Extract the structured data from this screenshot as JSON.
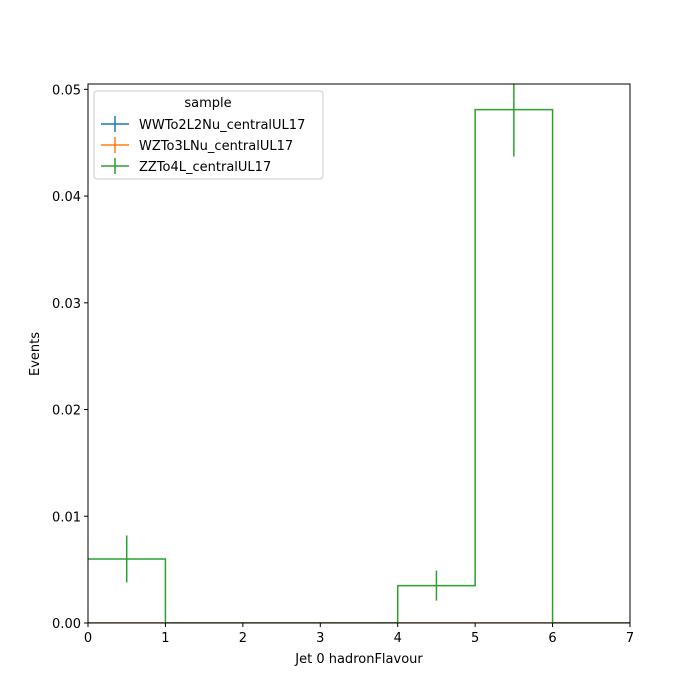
{
  "chart_data": {
    "type": "step-histogram",
    "xlabel": "Jet 0 hadronFlavour",
    "ylabel": "Events",
    "xlim": [
      0,
      7
    ],
    "ylim": [
      0,
      0.0505
    ],
    "x_ticks": [
      "0",
      "1",
      "2",
      "3",
      "4",
      "5",
      "6",
      "7"
    ],
    "y_ticks": [
      "0.00",
      "0.01",
      "0.02",
      "0.03",
      "0.04",
      "0.05"
    ],
    "bin_edges": [
      0,
      1,
      2,
      3,
      4,
      5,
      6,
      7
    ],
    "legend": {
      "title": "sample",
      "placement": "top-left"
    },
    "series": [
      {
        "name": "WWTo2L2Nu_centralUL17",
        "color": "#1f77b4",
        "values": [
          0,
          0,
          0,
          0,
          0,
          0,
          0
        ],
        "errors": [
          0,
          0,
          0,
          0,
          0,
          0,
          0
        ]
      },
      {
        "name": "WZTo3LNu_centralUL17",
        "color": "#ff7f0e",
        "values": [
          0,
          0,
          0,
          0,
          0,
          0,
          0
        ],
        "errors": [
          0,
          0,
          0,
          0,
          0,
          0,
          0
        ]
      },
      {
        "name": "ZZTo4L_centralUL17",
        "color": "#2ca02c",
        "values": [
          0.006,
          0,
          0,
          0,
          0.0035,
          0.0481,
          0
        ],
        "errors": [
          0.0022,
          0,
          0,
          0,
          0.0014,
          0.0044,
          0
        ]
      }
    ]
  }
}
